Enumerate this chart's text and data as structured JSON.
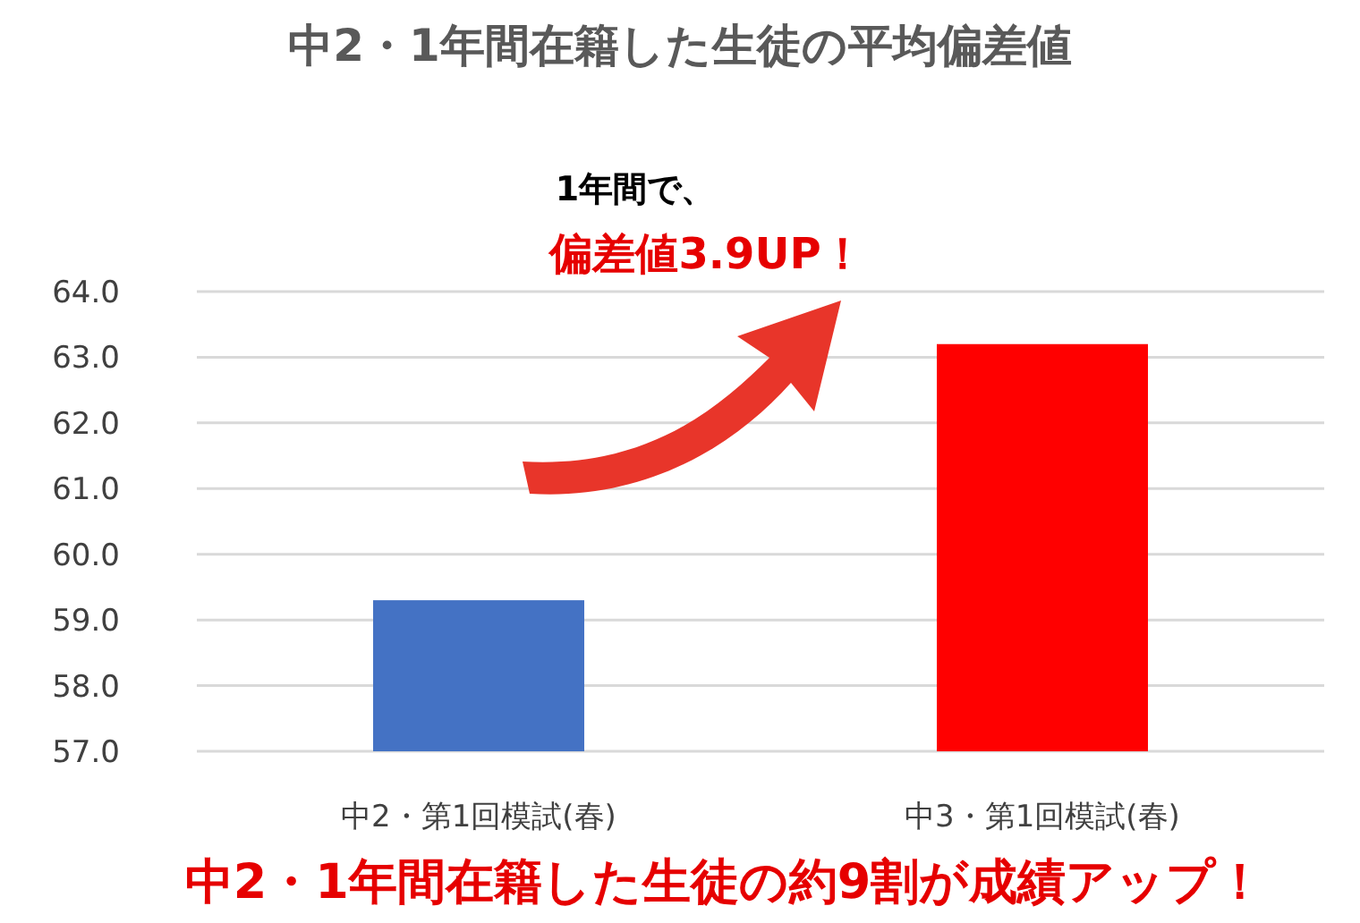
{
  "chart_data": {
    "type": "bar",
    "title": "中2・1年間在籍した生徒の平均偏差値",
    "categories": [
      "中2・第1回模試(春)",
      "中3・第1回模試(春)"
    ],
    "values": [
      59.3,
      63.2
    ],
    "colors": [
      "#4472c4",
      "#ff0000"
    ],
    "ylim": [
      57,
      64
    ],
    "yticks": [
      {
        "value": 57,
        "label": "57.0"
      },
      {
        "value": 58,
        "label": "58.0"
      },
      {
        "value": 59,
        "label": "59.0"
      },
      {
        "value": 60,
        "label": "60.0"
      },
      {
        "value": 61,
        "label": "61.0"
      },
      {
        "value": 62,
        "label": "62.0"
      },
      {
        "value": 63,
        "label": "63.0"
      },
      {
        "value": 64,
        "label": "64.0"
      }
    ],
    "grid": "y",
    "annotations": [
      "1年間で、",
      "偏差値3.9UP！",
      "中2・1年間在籍した生徒の約9割が成績アップ！"
    ]
  }
}
